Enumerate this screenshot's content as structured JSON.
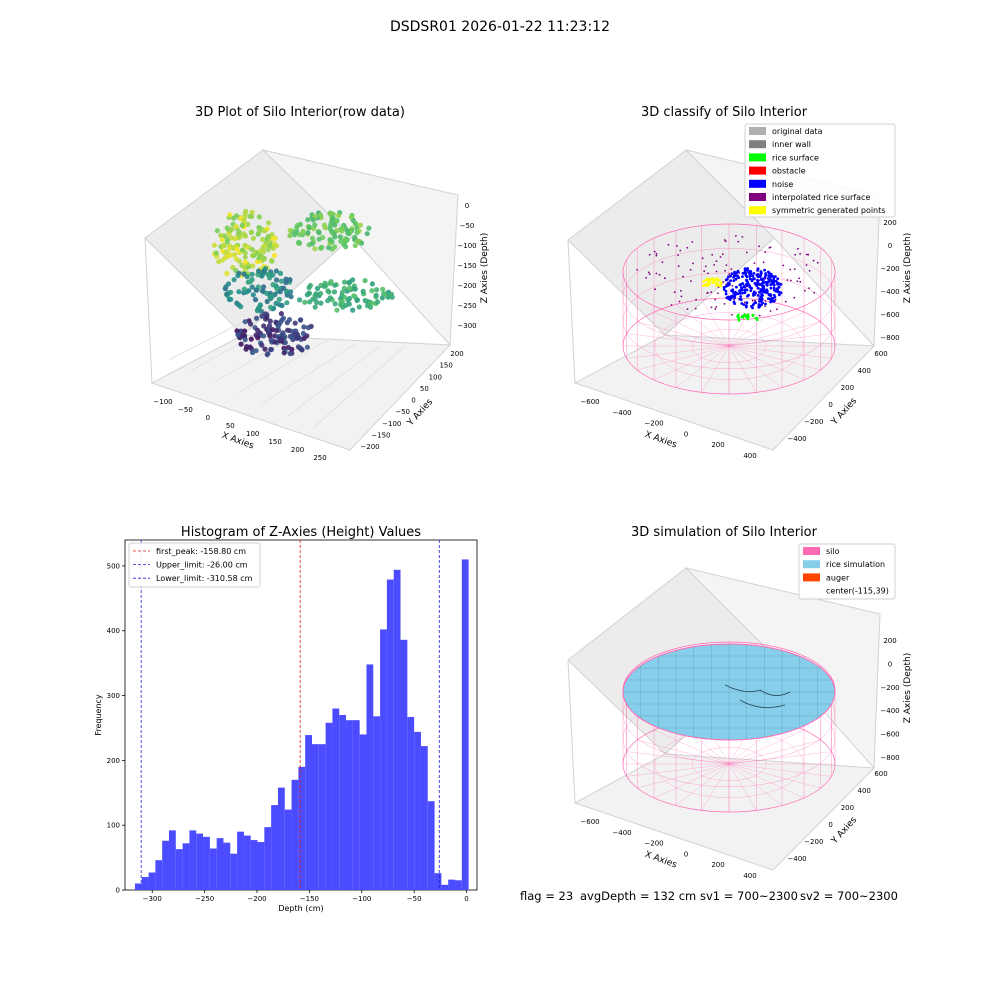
{
  "figure": {
    "suptitle": "DSDSR01 2026-01-22 11:23:12",
    "footer": {
      "flag": "flag = 23",
      "avg_depth": "avgDepth = 132 cm",
      "sv1": "sv1 = 700~2300",
      "sv2": "sv2 = 700~2300"
    }
  },
  "colors": {
    "hist_bar": "#4b4bff",
    "peak_line": "#e0201f",
    "limit_line": "#1f1fd6",
    "silo_mesh": "#ff69b4",
    "rice": "#87ceeb",
    "noise": "#0000ff",
    "rice_surface": "#00ff00",
    "symmetric": "#ffff00"
  },
  "chart_data": [
    {
      "type": "scatter",
      "title": "3D Plot of Silo Interior(row data)",
      "xlabel": "X Axies",
      "ylabel": "Y Axies",
      "zlabel": "Z Axies (Depth)",
      "xticks": [
        "−100",
        "−50",
        "0",
        "50",
        "100",
        "150",
        "200",
        "250"
      ],
      "yticks": [
        "200",
        "150",
        "100",
        "50",
        "0",
        "−50",
        "−100",
        "−150",
        "−200"
      ],
      "zticks": [
        "0",
        "−50",
        "−100",
        "−150",
        "−200",
        "−250",
        "−300"
      ],
      "colormap": "viridis"
    },
    {
      "type": "scatter",
      "title": "3D classify of Silo Interior",
      "xlabel": "X Axies",
      "ylabel": "Y Axies",
      "zlabel": "Z Axies (Depth)",
      "xticks": [
        "−600",
        "−400",
        "−200",
        "0",
        "200",
        "400"
      ],
      "yticks": [
        "600",
        "400",
        "200",
        "0",
        "−200",
        "−400"
      ],
      "zticks": [
        "200",
        "0",
        "−200",
        "−400",
        "−600",
        "−800"
      ],
      "legend": [
        {
          "label": "original data",
          "color": "#b0b0b0"
        },
        {
          "label": "inner wall",
          "color": "#808080"
        },
        {
          "label": "rice surface",
          "color": "#00ff00"
        },
        {
          "label": "obstacle",
          "color": "#ff0000"
        },
        {
          "label": "noise",
          "color": "#0000ff"
        },
        {
          "label": "interpolated rice surface",
          "color": "#800080"
        },
        {
          "label": "symmetric generated points",
          "color": "#ffff00"
        }
      ]
    },
    {
      "type": "bar",
      "title": "Histogram of Z-Axies (Height) Values",
      "xlabel": "Depth (cm)",
      "ylabel": "Frequency",
      "xlim": [
        -326,
        10
      ],
      "ylim": [
        0,
        540
      ],
      "xticks": [
        -300,
        -250,
        -200,
        -150,
        -100,
        -50,
        0
      ],
      "xtick_labels": [
        "−300",
        "−250",
        "−200",
        "−150",
        "−100",
        "−50",
        "0"
      ],
      "yticks": [
        0,
        100,
        200,
        300,
        400,
        500
      ],
      "bin_start": -316.5,
      "bin_width": 6.5,
      "values": [
        10,
        20,
        27,
        46,
        76,
        92,
        63,
        72,
        92,
        87,
        82,
        64,
        80,
        73,
        56,
        90,
        84,
        77,
        74,
        97,
        131,
        158,
        124,
        170,
        190,
        239,
        225,
        225,
        258,
        280,
        270,
        262,
        262,
        240,
        348,
        268,
        402,
        479,
        494,
        386,
        267,
        244,
        222,
        137,
        26,
        8,
        16,
        15,
        510
      ],
      "vlines": [
        {
          "label": "first_peak: -158.80 cm",
          "value": -158.8,
          "color": "#e0201f"
        },
        {
          "label": "Upper_limit: -26.00 cm",
          "value": -26.0,
          "color": "#1f1fd6"
        },
        {
          "label": "Lower_limit: -310.58 cm",
          "value": -310.58,
          "color": "#1f1fd6"
        }
      ],
      "legend_position": "upper left"
    },
    {
      "type": "surface",
      "title": "3D simulation of Silo Interior",
      "xlabel": "X Axies",
      "ylabel": "Y Axies",
      "zlabel": "Z Axies (Depth)",
      "xticks": [
        "−600",
        "−400",
        "−200",
        "0",
        "200",
        "400"
      ],
      "yticks": [
        "600",
        "400",
        "200",
        "0",
        "−200",
        "−400"
      ],
      "zticks": [
        "200",
        "0",
        "−200",
        "−400",
        "−600",
        "−800"
      ],
      "legend": [
        {
          "label": "silo",
          "color": "#ff69b4"
        },
        {
          "label": "rice simulation",
          "color": "#87ceeb"
        },
        {
          "label": "auger",
          "color": "#ff4500"
        },
        {
          "label": "center(-115,39)",
          "color": "none"
        }
      ]
    }
  ]
}
